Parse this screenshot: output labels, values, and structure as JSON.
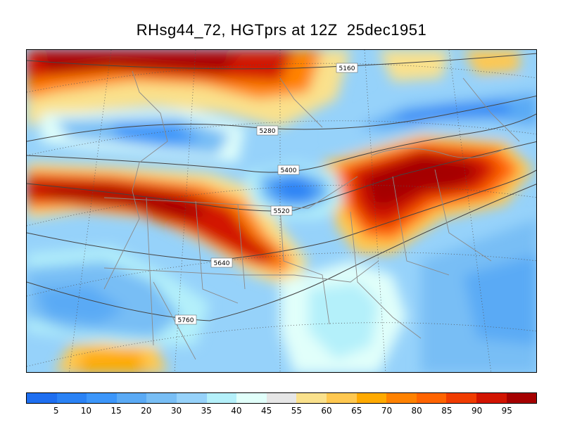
{
  "title": "RHsg44_72, HGTprs at 12Z  25dec1951",
  "colorbar": {
    "colors": [
      "#1e6ef0",
      "#2a82f5",
      "#3c96fa",
      "#5aaaf5",
      "#78bef5",
      "#96d2fa",
      "#b4f0fa",
      "#e1fffa",
      "#e6e6e6",
      "#fae18c",
      "#ffc850",
      "#ffaa00",
      "#ff8200",
      "#ff6400",
      "#f03c00",
      "#d21400",
      "#a50000"
    ],
    "tick_labels": [
      "5",
      "10",
      "15",
      "20",
      "30",
      "35",
      "40",
      "45",
      "55",
      "60",
      "65",
      "70",
      "80",
      "85",
      "90",
      "95"
    ]
  },
  "contour_labels": [
    "5160",
    "5280",
    "5400",
    "5520",
    "5640",
    "5760"
  ]
}
